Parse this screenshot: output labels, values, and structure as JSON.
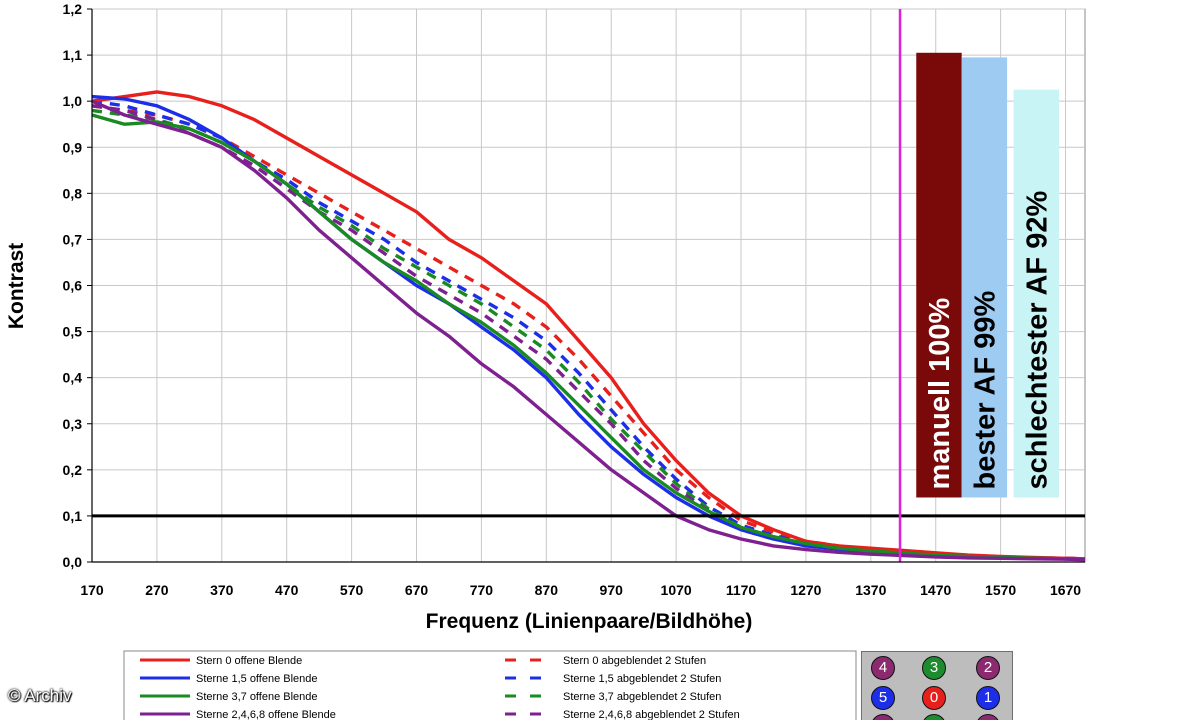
{
  "chart_data": {
    "type": "line",
    "xlabel": "Frequenz (Linienpaare/Bildhöhe)",
    "ylabel": "Kontrast",
    "xlim": [
      170,
      1700
    ],
    "ylim": [
      0,
      1.2
    ],
    "x_ticks": [
      "170",
      "270",
      "370",
      "470",
      "570",
      "670",
      "770",
      "870",
      "970",
      "1070",
      "1170",
      "1270",
      "1370",
      "1470",
      "1570",
      "1670"
    ],
    "y_ticks": [
      "0,0",
      "0,1",
      "0,2",
      "0,3",
      "0,4",
      "0,5",
      "0,6",
      "0,7",
      "0,8",
      "0,9",
      "1,0",
      "1,1",
      "1,2"
    ],
    "grid": true,
    "reference_line": {
      "y": 0.1,
      "color": "#000000"
    },
    "marker_line": {
      "x": 1415,
      "color": "#dd22dd"
    },
    "series": [
      {
        "name": "Stern 0 offene Blende",
        "color": "#e8201c",
        "style": "solid",
        "x": [
          170,
          220,
          270,
          320,
          370,
          420,
          470,
          520,
          570,
          620,
          670,
          720,
          770,
          820,
          870,
          920,
          970,
          1020,
          1070,
          1120,
          1170,
          1220,
          1270,
          1320,
          1370,
          1420,
          1470,
          1520,
          1570,
          1620,
          1670,
          1700
        ],
        "y": [
          1.0,
          1.01,
          1.02,
          1.01,
          0.99,
          0.96,
          0.92,
          0.88,
          0.84,
          0.8,
          0.76,
          0.7,
          0.66,
          0.61,
          0.56,
          0.48,
          0.4,
          0.3,
          0.22,
          0.15,
          0.1,
          0.07,
          0.045,
          0.035,
          0.03,
          0.025,
          0.02,
          0.015,
          0.012,
          0.01,
          0.008,
          0.007
        ]
      },
      {
        "name": "Sterne 1,5 offene Blende",
        "color": "#1c2ee8",
        "style": "solid",
        "x": [
          170,
          220,
          270,
          320,
          370,
          420,
          470,
          520,
          570,
          620,
          670,
          720,
          770,
          820,
          870,
          920,
          970,
          1020,
          1070,
          1120,
          1170,
          1220,
          1270,
          1320,
          1370,
          1420,
          1470,
          1520,
          1570,
          1620,
          1670,
          1700
        ],
        "y": [
          1.01,
          1.005,
          0.99,
          0.96,
          0.92,
          0.87,
          0.82,
          0.76,
          0.7,
          0.65,
          0.6,
          0.56,
          0.51,
          0.46,
          0.4,
          0.32,
          0.25,
          0.19,
          0.14,
          0.1,
          0.07,
          0.05,
          0.035,
          0.028,
          0.022,
          0.018,
          0.014,
          0.011,
          0.009,
          0.008,
          0.007,
          0.006
        ]
      },
      {
        "name": "Sterne 3,7 offene Blende",
        "color": "#1a8a22",
        "style": "solid",
        "x": [
          170,
          220,
          270,
          320,
          370,
          420,
          470,
          520,
          570,
          620,
          670,
          720,
          770,
          820,
          870,
          920,
          970,
          1020,
          1070,
          1120,
          1170,
          1220,
          1270,
          1320,
          1370,
          1420,
          1470,
          1520,
          1570,
          1620,
          1670,
          1700
        ],
        "y": [
          0.97,
          0.95,
          0.955,
          0.94,
          0.91,
          0.87,
          0.82,
          0.76,
          0.7,
          0.65,
          0.61,
          0.56,
          0.52,
          0.47,
          0.41,
          0.34,
          0.27,
          0.2,
          0.15,
          0.11,
          0.075,
          0.055,
          0.04,
          0.03,
          0.024,
          0.019,
          0.015,
          0.012,
          0.01,
          0.008,
          0.007,
          0.006
        ]
      },
      {
        "name": "Sterne 2,4,6,8 offene Blende",
        "color": "#7e2090",
        "style": "solid",
        "x": [
          170,
          220,
          270,
          320,
          370,
          420,
          470,
          520,
          570,
          620,
          670,
          720,
          770,
          820,
          870,
          920,
          970,
          1020,
          1070,
          1120,
          1170,
          1220,
          1270,
          1320,
          1370,
          1420,
          1470,
          1520,
          1570,
          1620,
          1670,
          1700
        ],
        "y": [
          1.0,
          0.97,
          0.95,
          0.93,
          0.9,
          0.85,
          0.79,
          0.72,
          0.66,
          0.6,
          0.54,
          0.49,
          0.43,
          0.38,
          0.32,
          0.26,
          0.2,
          0.15,
          0.1,
          0.07,
          0.05,
          0.035,
          0.027,
          0.021,
          0.017,
          0.014,
          0.011,
          0.009,
          0.008,
          0.007,
          0.006,
          0.005
        ]
      },
      {
        "name": "Stern 0 abgeblendet 2 Stufen",
        "color": "#e8201c",
        "style": "dashed",
        "x": [
          170,
          220,
          270,
          320,
          370,
          420,
          470,
          520,
          570,
          620,
          670,
          720,
          770,
          820,
          870,
          920,
          970,
          1020,
          1070,
          1120,
          1170,
          1220,
          1270,
          1320,
          1370,
          1420,
          1470,
          1520,
          1570,
          1620,
          1670,
          1700
        ],
        "y": [
          0.99,
          0.98,
          0.97,
          0.95,
          0.92,
          0.88,
          0.84,
          0.8,
          0.76,
          0.72,
          0.68,
          0.64,
          0.6,
          0.56,
          0.51,
          0.44,
          0.36,
          0.28,
          0.2,
          0.14,
          0.09,
          0.065,
          0.045,
          0.035,
          0.028,
          0.022,
          0.017,
          0.014,
          0.011,
          0.009,
          0.008,
          0.007
        ]
      },
      {
        "name": "Sterne 1,5 abgeblendet 2 Stufen",
        "color": "#1c2ee8",
        "style": "dashed",
        "x": [
          170,
          220,
          270,
          320,
          370,
          420,
          470,
          520,
          570,
          620,
          670,
          720,
          770,
          820,
          870,
          920,
          970,
          1020,
          1070,
          1120,
          1170,
          1220,
          1270,
          1320,
          1370,
          1420,
          1470,
          1520,
          1570,
          1620,
          1670,
          1700
        ],
        "y": [
          1.0,
          0.99,
          0.97,
          0.95,
          0.92,
          0.87,
          0.83,
          0.78,
          0.74,
          0.7,
          0.65,
          0.61,
          0.57,
          0.53,
          0.48,
          0.41,
          0.33,
          0.25,
          0.18,
          0.12,
          0.08,
          0.058,
          0.04,
          0.031,
          0.025,
          0.02,
          0.016,
          0.013,
          0.01,
          0.009,
          0.008,
          0.007
        ]
      },
      {
        "name": "Sterne 3,7 abgeblendet 2 Stufen",
        "color": "#1a8a22",
        "style": "dashed",
        "x": [
          170,
          220,
          270,
          320,
          370,
          420,
          470,
          520,
          570,
          620,
          670,
          720,
          770,
          820,
          870,
          920,
          970,
          1020,
          1070,
          1120,
          1170,
          1220,
          1270,
          1320,
          1370,
          1420,
          1470,
          1520,
          1570,
          1620,
          1670,
          1700
        ],
        "y": [
          0.98,
          0.97,
          0.96,
          0.94,
          0.91,
          0.87,
          0.82,
          0.77,
          0.73,
          0.68,
          0.64,
          0.6,
          0.56,
          0.51,
          0.46,
          0.39,
          0.31,
          0.24,
          0.17,
          0.115,
          0.075,
          0.055,
          0.038,
          0.03,
          0.024,
          0.019,
          0.015,
          0.012,
          0.01,
          0.008,
          0.007,
          0.006
        ]
      },
      {
        "name": "Sterne 2,4,6,8 abgeblendet 2 Stufen",
        "color": "#7e2090",
        "style": "dashed",
        "x": [
          170,
          220,
          270,
          320,
          370,
          420,
          470,
          520,
          570,
          620,
          670,
          720,
          770,
          820,
          870,
          920,
          970,
          1020,
          1070,
          1120,
          1170,
          1220,
          1270,
          1320,
          1370,
          1420,
          1470,
          1520,
          1570,
          1620,
          1670,
          1700
        ],
        "y": [
          0.99,
          0.98,
          0.96,
          0.93,
          0.9,
          0.86,
          0.81,
          0.76,
          0.72,
          0.67,
          0.62,
          0.58,
          0.54,
          0.49,
          0.44,
          0.37,
          0.3,
          0.22,
          0.16,
          0.11,
          0.07,
          0.05,
          0.036,
          0.028,
          0.022,
          0.018,
          0.014,
          0.011,
          0.009,
          0.008,
          0.007,
          0.006
        ]
      }
    ],
    "bars": [
      {
        "label": "manuell 100%",
        "value": 1.105,
        "color": "#7a0a0a",
        "text_color": "#ffffff",
        "x_from": 1440,
        "x_to": 1510
      },
      {
        "label": "bester AF 99%",
        "value": 1.095,
        "color": "#9ecbf2",
        "text_color": "#000000",
        "x_from": 1510,
        "x_to": 1580
      },
      {
        "label": "schlechtester AF 92%",
        "value": 1.025,
        "color": "#c8f4f6",
        "text_color": "#000000",
        "x_from": 1590,
        "x_to": 1660
      }
    ],
    "bar_baseline": 0.14
  },
  "star_panel": {
    "stars": [
      {
        "label": "4",
        "color": "#8b2a6e"
      },
      {
        "label": "3",
        "color": "#1d8b2e"
      },
      {
        "label": "2",
        "color": "#8b2a6e"
      },
      {
        "label": "5",
        "color": "#1c2ee8"
      },
      {
        "label": "0",
        "color": "#e8201c"
      },
      {
        "label": "1",
        "color": "#1c2ee8"
      },
      {
        "label": "",
        "color": "#8b2a6e"
      },
      {
        "label": "",
        "color": "#1d8b2e"
      },
      {
        "label": "",
        "color": "#8b2a6e"
      }
    ]
  },
  "credit": "© Archiv"
}
